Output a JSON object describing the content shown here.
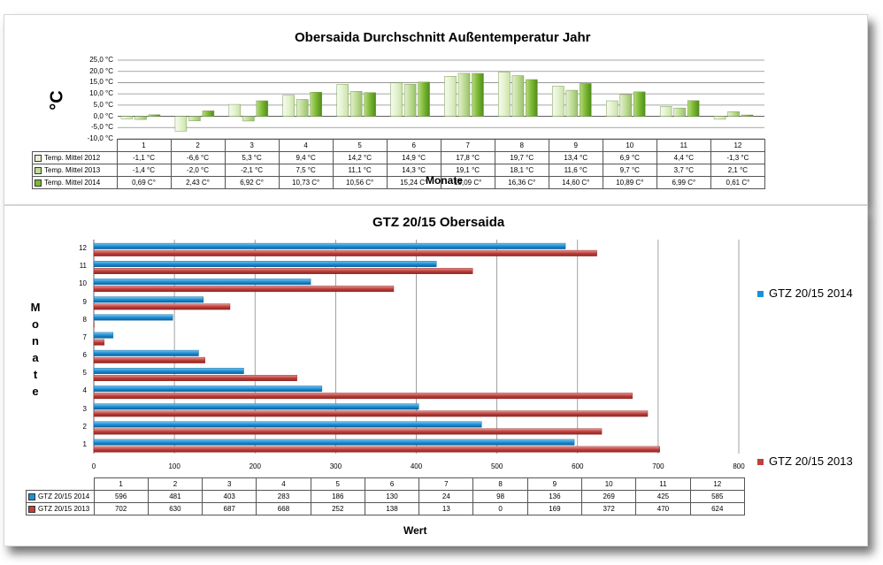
{
  "chart_data": [
    {
      "type": "bar",
      "title": "Obersaida Durchschnitt Außentemperatur Jahr",
      "xlabel": "Monate",
      "ylabel": "°C",
      "ylim": [
        -10,
        25
      ],
      "yticks": [
        "25,0 °C",
        "20,0 °C",
        "15,0 °C",
        "10,0 °C",
        "5,0 °C",
        "0,0 °C",
        "-5,0 °C",
        "-10,0 °C"
      ],
      "categories": [
        "1",
        "2",
        "3",
        "4",
        "5",
        "6",
        "7",
        "8",
        "9",
        "10",
        "11",
        "12"
      ],
      "series": [
        {
          "name": "Temp. Mittel 2012",
          "color": "#e4f2cf",
          "values": [
            -1.1,
            -6.6,
            5.3,
            9.4,
            14.2,
            14.9,
            17.8,
            19.7,
            13.4,
            6.9,
            4.4,
            -1.3
          ],
          "labels": [
            "-1,1 °C",
            "-6,6 °C",
            "5,3 °C",
            "9,4 °C",
            "14,2 °C",
            "14,9 °C",
            "17,8 °C",
            "19,7 °C",
            "13,4 °C",
            "6,9 °C",
            "4,4 °C",
            "-1,3 °C"
          ]
        },
        {
          "name": "Temp. Mittel 2013",
          "color": "#bfdc98",
          "values": [
            -1.4,
            -2.0,
            -2.1,
            7.5,
            11.1,
            14.3,
            19.1,
            18.1,
            11.6,
            9.7,
            3.7,
            2.1
          ],
          "labels": [
            "-1,4 °C",
            "-2,0 °C",
            "-2,1 °C",
            "7,5 °C",
            "11,1 °C",
            "14,3 °C",
            "19,1 °C",
            "18,1 °C",
            "11,6 °C",
            "9,7 °C",
            "3,7 °C",
            "2,1 °C"
          ]
        },
        {
          "name": "Temp. Mittel 2014",
          "color": "#7cb834",
          "values": [
            0.69,
            2.43,
            6.92,
            10.73,
            10.56,
            15.24,
            19.09,
            16.36,
            14.6,
            10.89,
            6.99,
            0.61
          ],
          "labels": [
            "0,69 C°",
            "2,43 C°",
            "6,92 C°",
            "10,73 C°",
            "10,56 C°",
            "15,24 C°",
            "19,09 C°",
            "16,36 C°",
            "14,60 C°",
            "10,89 C°",
            "6,99 C°",
            "0,61 C°"
          ]
        }
      ],
      "grid": true,
      "legend": "data-table"
    },
    {
      "type": "bar",
      "orientation": "horizontal",
      "title": "GTZ 20/15 Obersaida",
      "xlabel": "Wert",
      "ylabel": "Monate",
      "xlim": [
        0,
        800
      ],
      "xticks": [
        "0",
        "100",
        "200",
        "300",
        "400",
        "500",
        "600",
        "700",
        "800"
      ],
      "categories": [
        "1",
        "2",
        "3",
        "4",
        "5",
        "6",
        "7",
        "8",
        "9",
        "10",
        "11",
        "12"
      ],
      "series": [
        {
          "name": "GTZ 20/15 2014",
          "color": "#1e8fd6",
          "values": [
            596,
            481,
            403,
            283,
            186,
            130,
            24,
            98,
            136,
            269,
            425,
            585
          ]
        },
        {
          "name": "GTZ 20/15 2013",
          "color": "#c0403c",
          "values": [
            702,
            630,
            687,
            668,
            252,
            138,
            13,
            0,
            169,
            372,
            470,
            624
          ]
        }
      ],
      "legend_labels": [
        "GTZ 20/15  2014",
        "GTZ 20/15  2013"
      ],
      "grid": true,
      "legend": "right"
    }
  ]
}
